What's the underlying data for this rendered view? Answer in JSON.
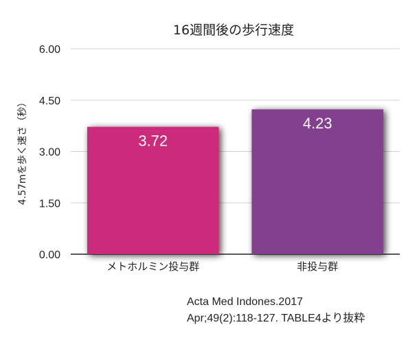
{
  "chart_data": {
    "type": "bar",
    "title": "16週間後の歩行速度",
    "xlabel": "",
    "ylabel": "4.57mを歩く速さ（秒）",
    "categories": [
      "メトホルミン投与群",
      "非投与群"
    ],
    "values": [
      3.72,
      4.23
    ],
    "data_labels": [
      "3.72",
      "4.23"
    ],
    "ylim": [
      0,
      6
    ],
    "yticks": [
      "0.00",
      "1.50",
      "3.00",
      "4.50",
      "6.00"
    ],
    "grid": true,
    "colors": [
      "#cc2b7a",
      "#82408f"
    ]
  },
  "source": {
    "line1": "Acta Med Indones.2017",
    "line2": "Apr;49(2):118-127. TABLE4より抜粋"
  }
}
